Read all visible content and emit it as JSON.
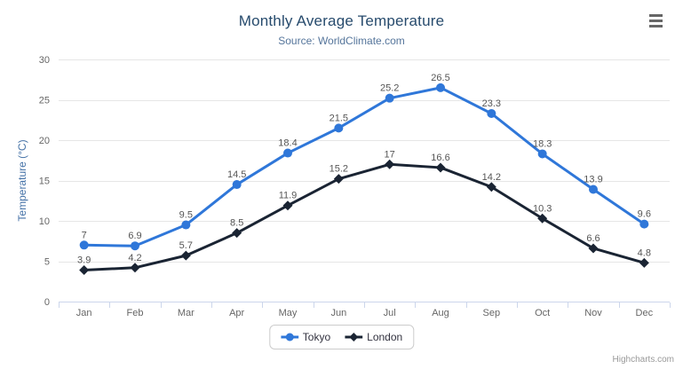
{
  "header": {
    "title": "Monthly Average Temperature",
    "subtitle": "Source: WorldClimate.com"
  },
  "credits_label": "Highcharts.com",
  "chart_data": {
    "type": "line",
    "title": "Monthly Average Temperature",
    "subtitle": "Source: WorldClimate.com",
    "categories": [
      "Jan",
      "Feb",
      "Mar",
      "Apr",
      "May",
      "Jun",
      "Jul",
      "Aug",
      "Sep",
      "Oct",
      "Nov",
      "Dec"
    ],
    "series": [
      {
        "name": "Tokyo",
        "marker": "circle",
        "color": "#2f77d9",
        "values": [
          7,
          6.9,
          9.5,
          14.5,
          18.4,
          21.5,
          25.2,
          26.5,
          23.3,
          18.3,
          13.9,
          9.6
        ]
      },
      {
        "name": "London",
        "marker": "diamond",
        "color": "#1a2433",
        "values": [
          3.9,
          4.2,
          5.7,
          8.5,
          11.9,
          15.2,
          17,
          16.6,
          14.2,
          10.3,
          6.6,
          4.8
        ]
      }
    ],
    "xlabel": "",
    "ylabel": "Temperature (°C)",
    "ylim": [
      0,
      30
    ],
    "yticks": [
      0,
      5,
      10,
      15,
      20,
      25,
      30
    ],
    "grid": true,
    "data_labels": true,
    "legend_position": "bottom"
  },
  "colors": {
    "title": "#274b6d",
    "subtitle": "#55759b",
    "axis_label": "#666666",
    "axis_title": "#4572a7",
    "gridline": "#e6e6e6",
    "axis_line": "#ccd6eb",
    "data_label": "#555555",
    "legend_text": "#333340",
    "credits": "#999999"
  }
}
